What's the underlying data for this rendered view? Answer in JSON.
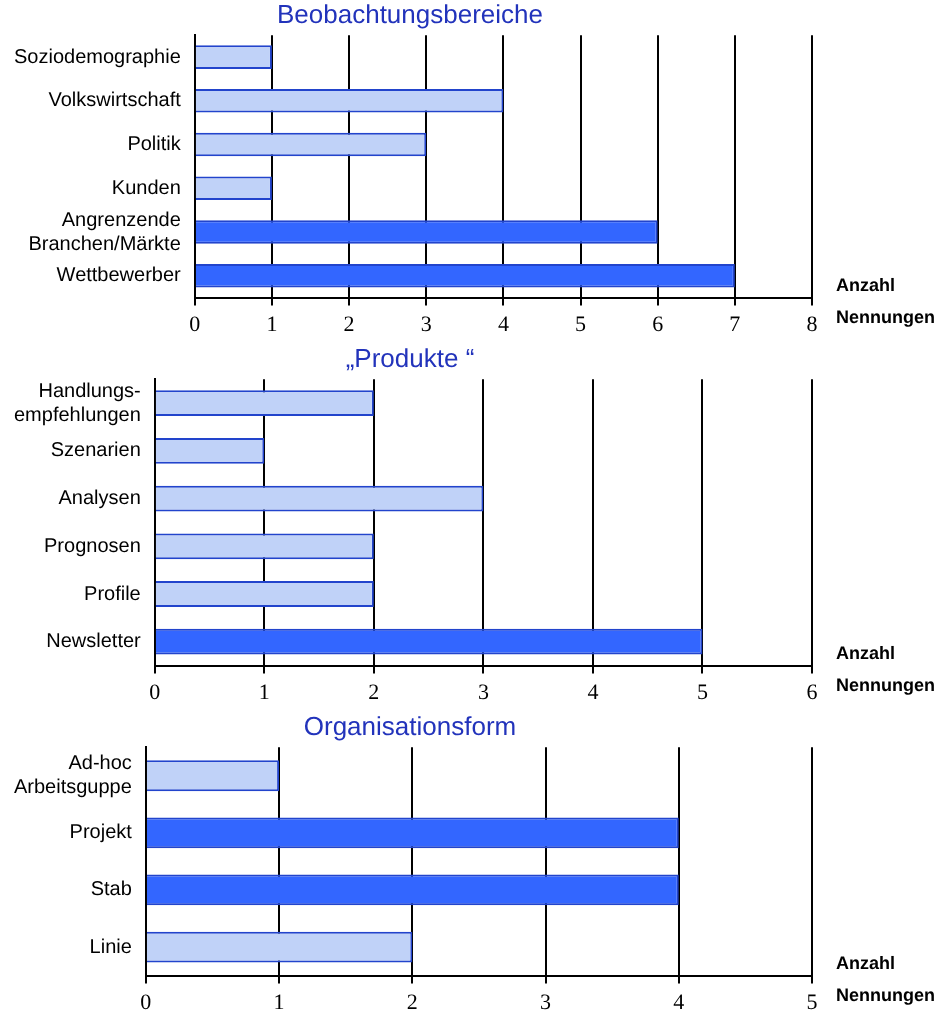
{
  "chart_data": [
    {
      "type": "bar",
      "orientation": "horizontal",
      "title": "Beobachtungsbereiche",
      "xlabel": "Anzahl Nennungen",
      "categories": [
        "Soziodemographie",
        "Volkswirtschaft",
        "Politik",
        "Kunden",
        "Angrenzende Branchen/Märkte",
        "Wettbewerber"
      ],
      "values": [
        1,
        4,
        3,
        1,
        6,
        7
      ],
      "colors": [
        "#c0d2f8",
        "#c0d2f8",
        "#c0d2f8",
        "#c0d2f8",
        "#3366ff",
        "#3366ff"
      ],
      "xlim": [
        0,
        8
      ],
      "xticks": [
        0,
        1,
        2,
        3,
        4,
        5,
        6,
        7,
        8
      ],
      "grid": "x",
      "legend": false
    },
    {
      "type": "bar",
      "orientation": "horizontal",
      "title": "„Produkte “",
      "xlabel": "Anzahl Nennungen",
      "categories": [
        "Handlungs-empfehlungen",
        "Szenarien",
        "Analysen",
        "Prognosen",
        "Profile",
        "Newsletter"
      ],
      "values": [
        2,
        1,
        3,
        2,
        2,
        5
      ],
      "colors": [
        "#c0d2f8",
        "#c0d2f8",
        "#c0d2f8",
        "#c0d2f8",
        "#c0d2f8",
        "#3366ff"
      ],
      "xlim": [
        0,
        6
      ],
      "xticks": [
        0,
        1,
        2,
        3,
        4,
        5,
        6
      ],
      "grid": "x",
      "legend": false
    },
    {
      "type": "bar",
      "orientation": "horizontal",
      "title": "Organisationsform",
      "xlabel": "Anzahl Nennungen",
      "categories": [
        "Ad-hoc Arbeitsguppe",
        "Projekt",
        "Stab",
        "Linie"
      ],
      "values": [
        1,
        4,
        4,
        2
      ],
      "colors": [
        "#c0d2f8",
        "#3366ff",
        "#3366ff",
        "#c0d2f8"
      ],
      "xlim": [
        0,
        5
      ],
      "xticks": [
        0,
        1,
        2,
        3,
        4,
        5
      ],
      "grid": "x",
      "legend": false
    }
  ]
}
